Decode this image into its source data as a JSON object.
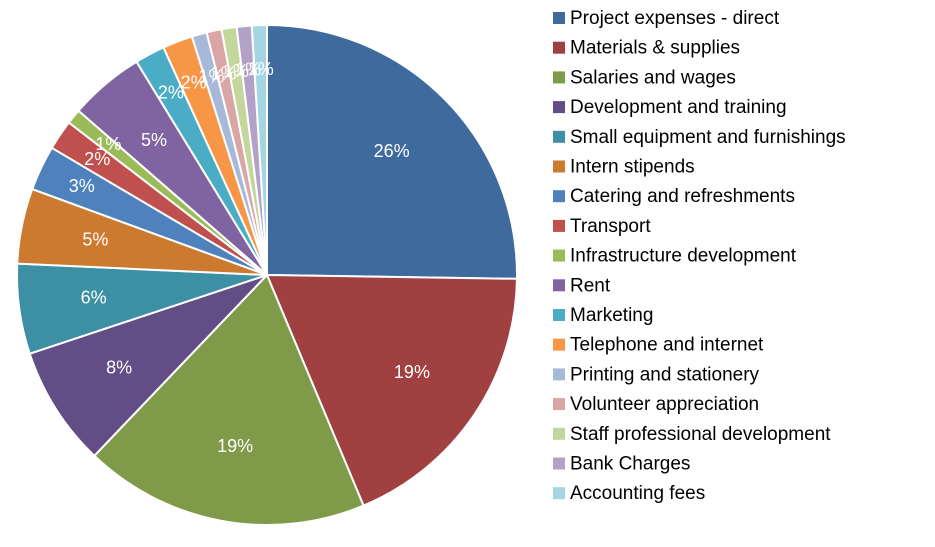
{
  "chart_data": {
    "type": "pie",
    "categories": [
      "Project expenses - direct",
      "Materials & supplies",
      "Salaries and wages",
      "Development and training",
      "Small equipment and furnishings",
      "Intern stipends",
      "Catering and refreshments",
      "Transport",
      "Infrastructure development",
      "Rent",
      "Marketing",
      "Telephone and internet",
      "Printing and stationery",
      "Volunteer appreciation",
      "Staff professional development",
      "Bank Charges",
      "Accounting fees"
    ],
    "values": [
      26,
      19,
      19,
      8,
      6,
      5,
      3,
      2,
      1,
      5,
      2,
      2,
      1,
      1,
      1,
      1,
      1
    ],
    "value_labels": [
      "26%",
      "19%",
      "19%",
      "8%",
      "6%",
      "5%",
      "3%",
      "2%",
      "1%",
      "5%",
      "2%",
      "2%",
      "1%",
      "1%",
      "1%",
      "1%",
      "1%"
    ],
    "colors": [
      "#3f6a9e",
      "#a04040",
      "#7f9a48",
      "#634d87",
      "#3d8fa3",
      "#cc7a30",
      "#4f81bd",
      "#c0504d",
      "#9bbb59",
      "#8064a2",
      "#4bacc6",
      "#f79646",
      "#a7b9d9",
      "#d9a6a5",
      "#c3d69b",
      "#b3a2c7",
      "#a5d5e2"
    ],
    "legend": "right"
  }
}
